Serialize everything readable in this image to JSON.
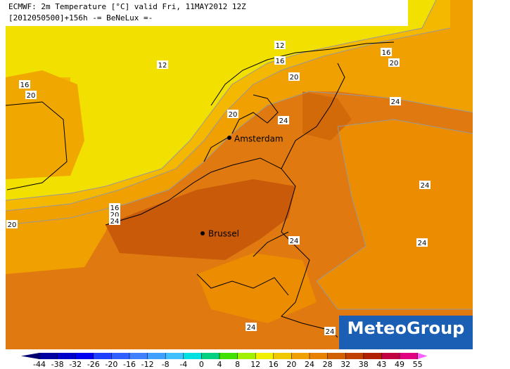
{
  "header": {
    "title": "ECMWF: 2m Temperature [°C] valid Fri, 11MAY2012 12Z",
    "subtitle": "[2012050500]+156h -= BeNeLux =-"
  },
  "map": {
    "contour_labels": [
      12,
      12,
      16,
      16,
      16,
      20,
      20,
      20,
      24,
      20,
      24,
      24,
      16,
      20,
      24,
      20,
      24,
      24,
      24,
      24
    ],
    "cities": [
      "Amsterdam",
      "Brussel"
    ]
  },
  "logo": "MeteoGroup",
  "colorbar": {
    "ticks": [
      -44,
      -38,
      -32,
      -26,
      -20,
      -16,
      -12,
      -8,
      -4,
      0,
      4,
      8,
      12,
      16,
      20,
      24,
      28,
      32,
      38,
      43,
      49,
      55
    ],
    "colors": [
      "#000070",
      "#0000a0",
      "#0000c8",
      "#0000f0",
      "#2040ff",
      "#3060ff",
      "#4080ff",
      "#40a0ff",
      "#40c0ff",
      "#00e0e0",
      "#00d080",
      "#40e000",
      "#a0f000",
      "#f0f000",
      "#f0c800",
      "#f0a000",
      "#e88000",
      "#d06000",
      "#c04000",
      "#b02000",
      "#c00040",
      "#e00080",
      "#ff60ff"
    ]
  }
}
